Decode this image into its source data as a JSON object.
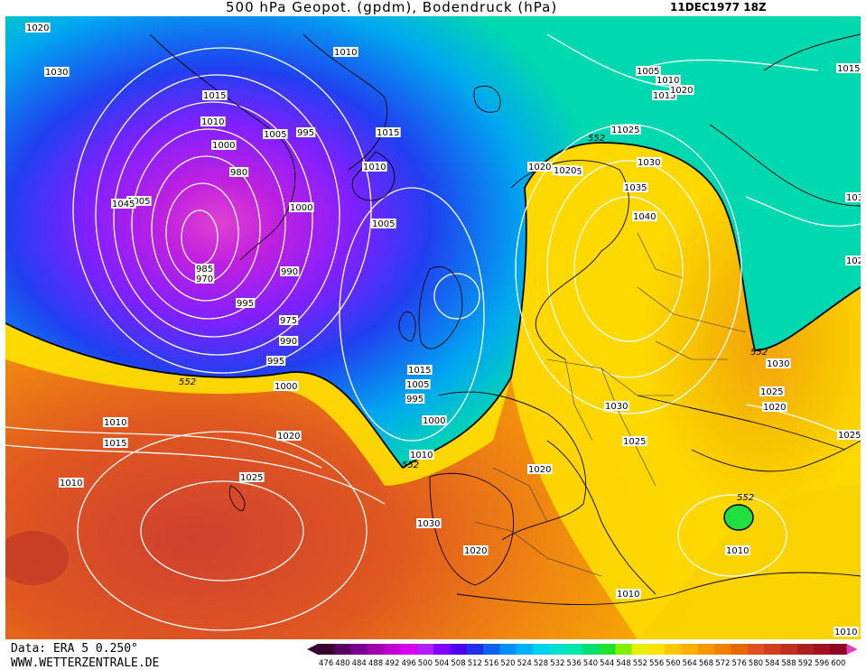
{
  "header": {
    "title": "500 hPa Geopot. (gpdm), Bodendruck (hPa)",
    "date": "11DEC1977 18Z"
  },
  "footer": {
    "data_source": "Data: ERA 5 0.250°",
    "website": "WWW.WETTERZENTRALE.DE"
  },
  "legend": {
    "values": [
      "476",
      "480",
      "484",
      "488",
      "492",
      "496",
      "500",
      "504",
      "508",
      "512",
      "516",
      "520",
      "524",
      "528",
      "532",
      "536",
      "540",
      "544",
      "548",
      "552",
      "556",
      "560",
      "564",
      "568",
      "572",
      "576",
      "580",
      "584",
      "588",
      "592",
      "596",
      "600"
    ],
    "colors": [
      "#3a0030",
      "#5a0060",
      "#7a0090",
      "#a000b0",
      "#c000d0",
      "#d800ec",
      "#b020ff",
      "#8000ff",
      "#5000f0",
      "#2030e8",
      "#1060f0",
      "#0090f8",
      "#00b0f8",
      "#00d0f0",
      "#00e0d0",
      "#00e8a8",
      "#00e070",
      "#20e030",
      "#80f000",
      "#e8f000",
      "#ffe000",
      "#ffc800",
      "#ffb000",
      "#f89800",
      "#f08000",
      "#e86800",
      "#e05020",
      "#d04020",
      "#c03020",
      "#b02020",
      "#a01020",
      "#900020"
    ]
  },
  "map": {
    "contour_552_label": "552",
    "pressure_labels": [
      "1020",
      "1030",
      "1010",
      "1015",
      "1010",
      "1005",
      "995",
      "1000",
      "990",
      "985",
      "980",
      "1000",
      "1005",
      "1010",
      "1015",
      "1020",
      "1025",
      "1030",
      "1035",
      "1040",
      "1045",
      "1005",
      "995",
      "985",
      "970",
      "975",
      "990",
      "995",
      "1000",
      "1005",
      "1010",
      "1015",
      "1005",
      "995",
      "1000",
      "1005",
      "1010",
      "1015",
      "1020",
      "1025",
      "1030",
      "1010",
      "1015",
      "1020",
      "1025",
      "1020",
      "1030",
      "1025",
      "1020",
      "1010",
      "1015",
      "1010",
      "1020",
      "1025",
      "1030",
      "1020",
      "1010",
      "1010",
      "1025",
      "1030",
      "1020",
      "1010",
      "552",
      "552",
      "552",
      "552",
      "552"
    ]
  }
}
